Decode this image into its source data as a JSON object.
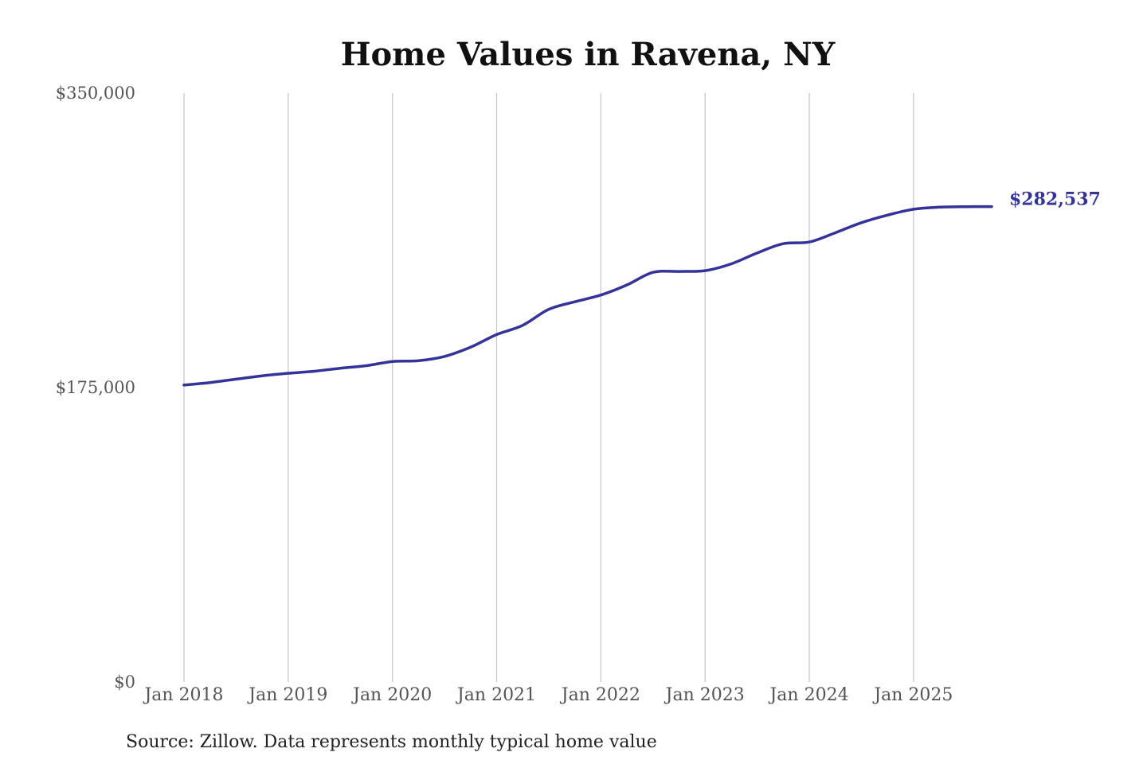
{
  "chart_data": {
    "type": "line",
    "title": "Home Values in Ravena, NY",
    "source": "Source: Zillow. Data represents monthly typical home value",
    "x_range": [
      "2018-01",
      "2025-10"
    ],
    "y_range": [
      0,
      350000
    ],
    "y_ticks": [
      {
        "value": 0,
        "label": "$0"
      },
      {
        "value": 175000,
        "label": "$175,000"
      },
      {
        "value": 350000,
        "label": "$350,000"
      }
    ],
    "x_ticks": [
      {
        "date": "2018-01",
        "label": "Jan 2018"
      },
      {
        "date": "2019-01",
        "label": "Jan 2019"
      },
      {
        "date": "2020-01",
        "label": "Jan 2020"
      },
      {
        "date": "2021-01",
        "label": "Jan 2021"
      },
      {
        "date": "2022-01",
        "label": "Jan 2022"
      },
      {
        "date": "2023-01",
        "label": "Jan 2023"
      },
      {
        "date": "2024-01",
        "label": "Jan 2024"
      },
      {
        "date": "2025-01",
        "label": "Jan 2025"
      }
    ],
    "grid": "vertical",
    "line_color": "#33339a",
    "end_label": "$282,537",
    "series": [
      {
        "points": [
          [
            "2018-01",
            176500
          ],
          [
            "2018-04",
            178000
          ],
          [
            "2018-07",
            180000
          ],
          [
            "2018-10",
            182000
          ],
          [
            "2019-01",
            183500
          ],
          [
            "2019-04",
            184700
          ],
          [
            "2019-07",
            186500
          ],
          [
            "2019-10",
            188000
          ],
          [
            "2020-01",
            190500
          ],
          [
            "2020-04",
            191000
          ],
          [
            "2020-07",
            193500
          ],
          [
            "2020-10",
            199000
          ],
          [
            "2021-01",
            206500
          ],
          [
            "2021-04",
            212000
          ],
          [
            "2021-07",
            221500
          ],
          [
            "2021-10",
            226000
          ],
          [
            "2022-01",
            230000
          ],
          [
            "2022-04",
            236000
          ],
          [
            "2022-07",
            243500
          ],
          [
            "2022-10",
            244000
          ],
          [
            "2023-01",
            244500
          ],
          [
            "2023-04",
            248500
          ],
          [
            "2023-07",
            255000
          ],
          [
            "2023-10",
            260500
          ],
          [
            "2024-01",
            261500
          ],
          [
            "2024-04",
            267000
          ],
          [
            "2024-07",
            273000
          ],
          [
            "2024-10",
            277500
          ],
          [
            "2025-01",
            281000
          ],
          [
            "2025-04",
            282200
          ],
          [
            "2025-07",
            282500
          ],
          [
            "2025-10",
            282537
          ]
        ]
      }
    ]
  }
}
